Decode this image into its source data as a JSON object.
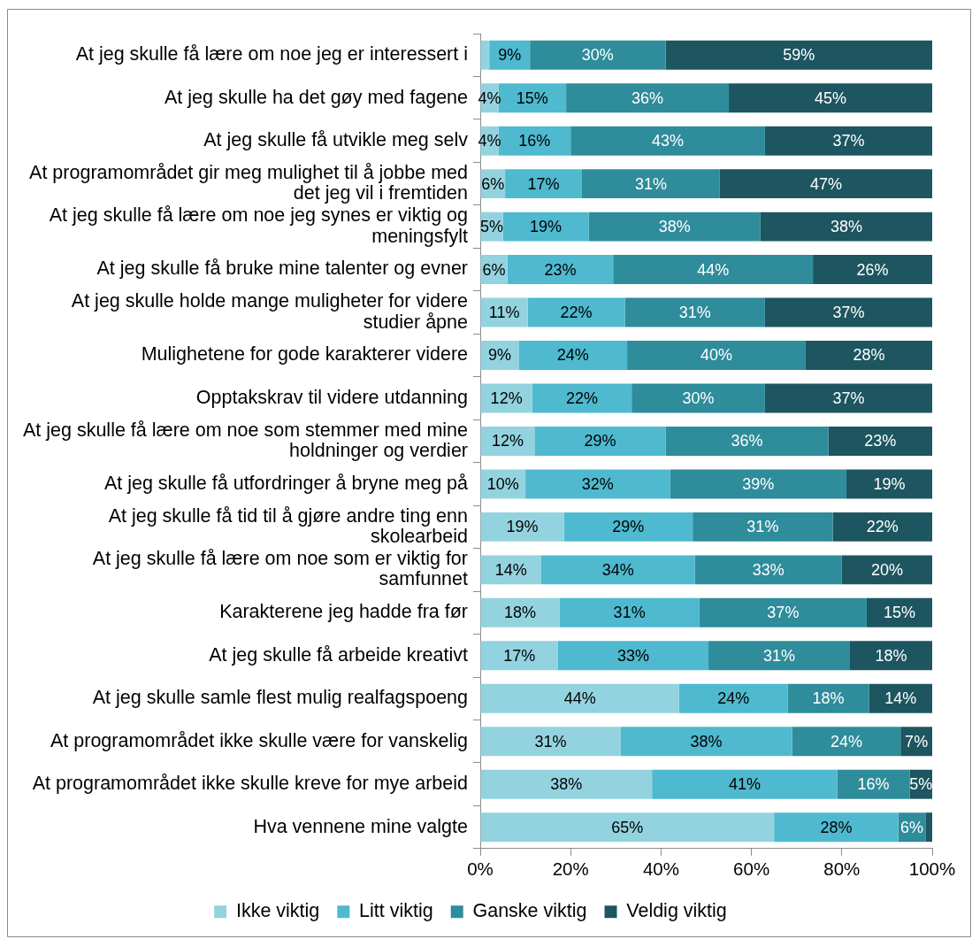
{
  "chart_data": {
    "type": "bar",
    "orientation": "horizontal",
    "stacked": true,
    "categories": [
      "At jeg skulle få lære om noe jeg er interessert i",
      "At jeg skulle ha det gøy med fagene",
      "At jeg skulle få utvikle meg selv",
      "At programområdet gir meg mulighet til å jobbe med det jeg vil i fremtiden",
      "At jeg skulle få lære om noe jeg synes er viktig og meningsfylt",
      "At jeg skulle få bruke mine talenter og evner",
      "At jeg skulle holde mange muligheter for videre studier åpne",
      "Mulighetene for gode karakterer videre",
      "Opptakskrav til videre utdanning",
      "At jeg skulle få lære om noe som stemmer med mine holdninger og verdier",
      "At jeg skulle få utfordringer å bryne meg på",
      "At jeg skulle få tid til å gjøre andre ting enn skolearbeid",
      "At jeg skulle få lære om noe som er viktig for samfunnet",
      "Karakterene jeg hadde fra før",
      "At jeg skulle få arbeide kreativt",
      "At jeg skulle samle flest mulig realfagspoeng",
      "At programområdet ikke skulle være for vanskelig",
      "At programområdet ikke skulle kreve for mye arbeid",
      "Hva vennene mine valgte"
    ],
    "series": [
      {
        "name": "Ikke viktig",
        "color": "#93d3df",
        "values": [
          2,
          4,
          4,
          5.5,
          5,
          6,
          10.5,
          8.5,
          11.5,
          12,
          10,
          18.5,
          13.5,
          17.5,
          17.2,
          44,
          31,
          38,
          65
        ],
        "value_labels": [
          null,
          "4%",
          "4%",
          "6%",
          "5%",
          "6%",
          "11%",
          "9%",
          "12%",
          "12%",
          "10%",
          "19%",
          "14%",
          "18%",
          "17%",
          "44%",
          "31%",
          "38%",
          "65%"
        ]
      },
      {
        "name": "Litt viktig",
        "color": "#4eb9cf",
        "values": [
          9,
          15,
          16,
          17,
          19,
          23.4,
          21.5,
          24,
          22,
          29,
          32,
          28.5,
          34,
          31,
          33.3,
          24,
          38,
          41,
          27.5
        ],
        "value_labels": [
          "9%",
          "15%",
          "16%",
          "17%",
          "19%",
          "23%",
          "22%",
          "24%",
          "22%",
          "29%",
          "32%",
          "29%",
          "34%",
          "31%",
          "33%",
          "24%",
          "38%",
          "41%",
          "28%"
        ]
      },
      {
        "name": "Ganske viktig",
        "color": "#2e8c9b",
        "values": [
          30,
          36,
          43,
          30.5,
          38,
          44.2,
          31,
          39.5,
          29.5,
          36,
          39,
          31,
          32.5,
          37,
          31.3,
          18,
          24,
          16,
          6
        ],
        "value_labels": [
          "30%",
          "36%",
          "43%",
          "31%",
          "38%",
          "44%",
          "31%",
          "40%",
          "30%",
          "36%",
          "39%",
          "31%",
          "33%",
          "37%",
          "31%",
          "18%",
          "24%",
          "16%",
          "6%"
        ]
      },
      {
        "name": "Veldig viktig",
        "color": "#1d5660",
        "values": [
          59,
          45,
          37,
          47,
          38,
          26.4,
          37,
          28,
          37,
          23,
          19,
          22,
          20,
          14.5,
          18.2,
          14,
          7,
          5,
          1.5
        ],
        "value_labels": [
          "59%",
          "45%",
          "37%",
          "47%",
          "38%",
          "26%",
          "37%",
          "28%",
          "37%",
          "23%",
          "19%",
          "22%",
          "20%",
          "15%",
          "18%",
          "14%",
          "7%",
          "5%",
          null
        ]
      }
    ],
    "xlim": [
      0,
      100
    ],
    "xticks": [
      {
        "value": 0,
        "label": "0%"
      },
      {
        "value": 20,
        "label": "20%"
      },
      {
        "value": 40,
        "label": "40%"
      },
      {
        "value": 60,
        "label": "60%"
      },
      {
        "value": 80,
        "label": "80%"
      },
      {
        "value": 100,
        "label": "100%"
      }
    ],
    "legend": "bottom"
  }
}
